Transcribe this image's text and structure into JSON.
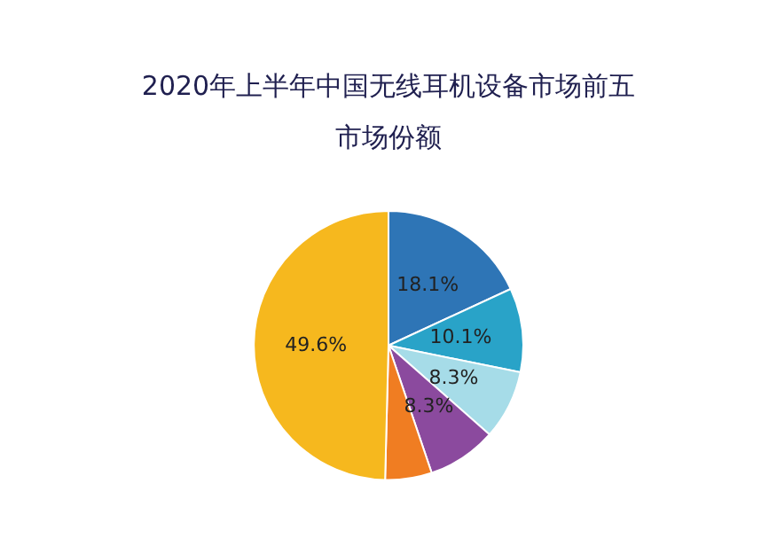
{
  "chart_data": {
    "type": "pie",
    "title": "2020年上半年中国无线耳机设备市场前五",
    "subtitle": "市场份额",
    "categories": [
      null,
      null,
      null,
      null,
      null,
      null
    ],
    "values": [
      18.1,
      10.1,
      8.3,
      8.3,
      5.6,
      49.6
    ],
    "colors": [
      "#2e75b6",
      "#29a3c8",
      "#a6dce8",
      "#8b4a9e",
      "#f07d22",
      "#f6b81e"
    ],
    "value_labels": [
      "18.1%",
      "10.1%",
      "8.3%",
      "8.3%",
      null,
      "49.6%"
    ]
  }
}
